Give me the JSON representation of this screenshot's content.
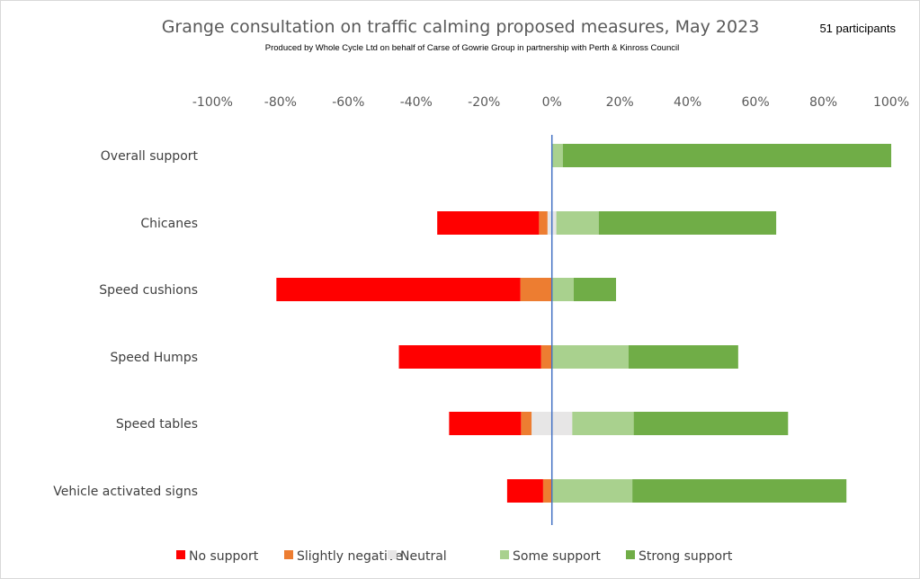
{
  "chart_data": {
    "type": "bar",
    "orientation": "horizontal",
    "stacked": "diverging",
    "title": "Grange consultation on traffic calming proposed measures, May 2023",
    "subtitle": "Produced by Whole Cycle Ltd on behalf of Carse of Gowrie Group in partnership with  Perth & Kinross Council",
    "annotation": "51 participants",
    "xlim": [
      -100,
      100
    ],
    "x_ticks": [
      "-100%",
      "-80%",
      "-60%",
      "-40%",
      "-20%",
      "0%",
      "20%",
      "40%",
      "60%",
      "80%",
      "100%"
    ],
    "grid": false,
    "legend_position": "bottom",
    "categories": [
      "Overall support",
      "Chicanes",
      "Speed cushions",
      "Speed Humps",
      "Speed tables",
      "Vehicle activated signs"
    ],
    "series": [
      {
        "name": "No support",
        "color": "#ff0000",
        "values": [
          0,
          30.0,
          71.9,
          41.9,
          21.2,
          10.6
        ]
      },
      {
        "name": "Slightly negative",
        "color": "#ed7d31",
        "values": [
          0,
          2.5,
          9.3,
          3.2,
          3.1,
          2.6
        ]
      },
      {
        "name": "Neutral",
        "color": "#e7e6e6",
        "values": [
          0,
          2.6,
          0,
          0,
          12.0,
          0
        ]
      },
      {
        "name": "Some support",
        "color": "#a9d18e",
        "values": [
          3.2,
          12.5,
          6.4,
          22.6,
          18.1,
          23.7
        ]
      },
      {
        "name": "Strong support",
        "color": "#70ad47",
        "values": [
          96.8,
          52.3,
          12.5,
          32.3,
          45.5,
          63.1
        ]
      }
    ],
    "zero_line_color": "#4472c4"
  }
}
